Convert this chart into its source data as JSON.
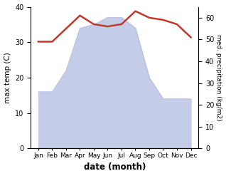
{
  "months": [
    "Jan",
    "Feb",
    "Mar",
    "Apr",
    "May",
    "Jun",
    "Jul",
    "Aug",
    "Sep",
    "Oct",
    "Nov",
    "Dec"
  ],
  "temperature": [
    16,
    16,
    22,
    34,
    35,
    37,
    37,
    34,
    20,
    14,
    14,
    14
  ],
  "precipitation": [
    49,
    49,
    55,
    61,
    57,
    56,
    57,
    63,
    60,
    59,
    57,
    51
  ],
  "temp_color": "#c0392b",
  "precip_fill_color": "#c5cce8",
  "precip_edge_color": "#b0bada",
  "background_color": "#ffffff",
  "xlabel": "date (month)",
  "ylabel_left": "max temp (C)",
  "ylabel_right": "med. precipitation (kg/m2)",
  "ylim_left": [
    0,
    40
  ],
  "ylim_right": [
    0,
    65
  ],
  "yticks_left": [
    0,
    10,
    20,
    30,
    40
  ],
  "yticks_right": [
    0,
    10,
    20,
    30,
    40,
    50,
    60
  ],
  "temp_linewidth": 1.8,
  "figsize": [
    3.18,
    2.47
  ],
  "dpi": 100
}
